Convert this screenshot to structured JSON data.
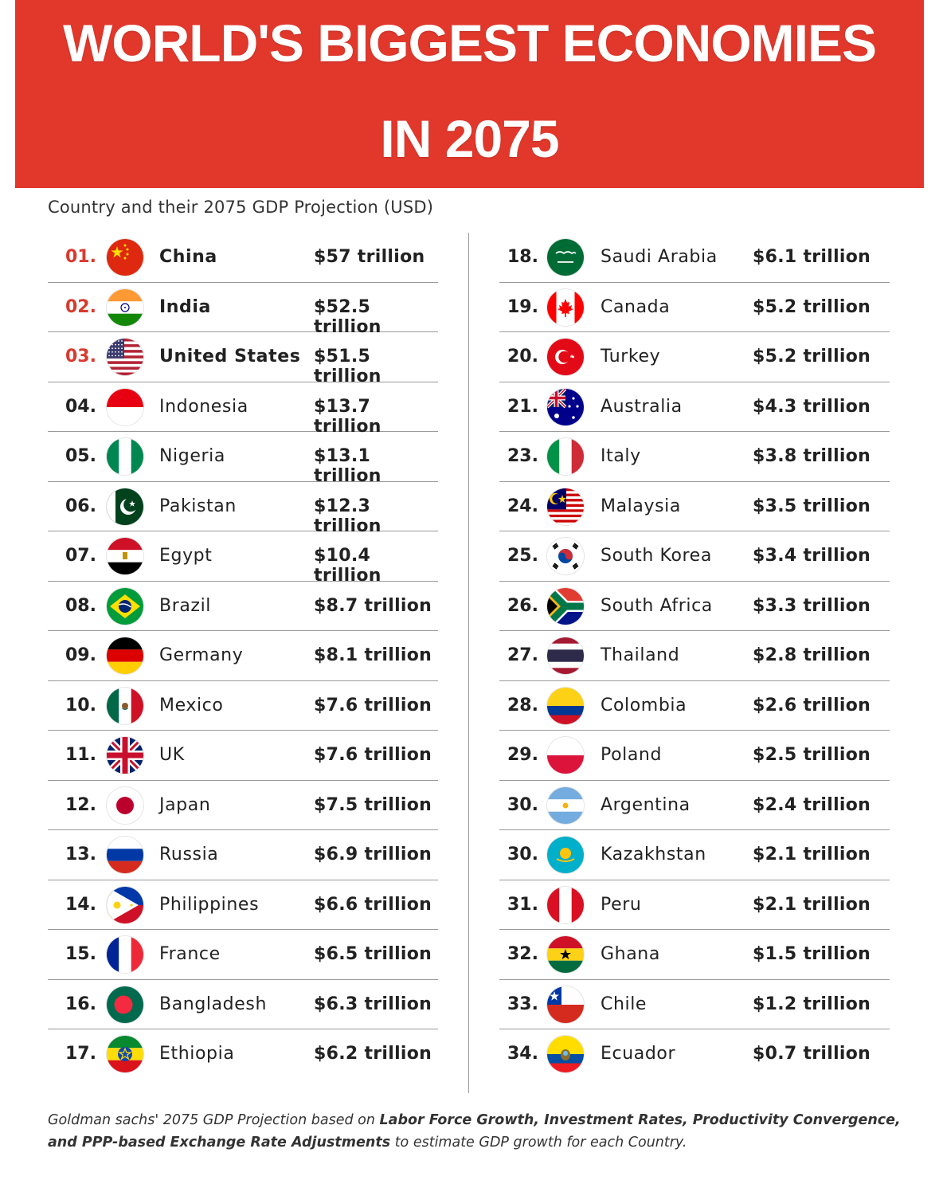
{
  "header": {
    "title_line1": "WORLD'S BIGGEST ECONOMIES",
    "title_line2": "IN 2075",
    "banner_color": "#e2382c"
  },
  "subtitle": "Country and their 2075 GDP Projection (USD)",
  "left_column": [
    {
      "rank": "01.",
      "country": "China",
      "gdp": "$57 trillion",
      "flag": "china-flag-icon"
    },
    {
      "rank": "02.",
      "country": "India",
      "gdp": "$52.5 trillion",
      "flag": "india-flag-icon"
    },
    {
      "rank": "03.",
      "country": "United States",
      "gdp": "$51.5 trillion",
      "flag": "usa-flag-icon"
    },
    {
      "rank": "04.",
      "country": "Indonesia",
      "gdp": "$13.7 trillion",
      "flag": "indonesia-flag-icon"
    },
    {
      "rank": "05.",
      "country": "Nigeria",
      "gdp": "$13.1 trillion",
      "flag": "nigeria-flag-icon"
    },
    {
      "rank": "06.",
      "country": "Pakistan",
      "gdp": "$12.3 trillion",
      "flag": "pakistan-flag-icon"
    },
    {
      "rank": "07.",
      "country": "Egypt",
      "gdp": "$10.4 trillion",
      "flag": "egypt-flag-icon"
    },
    {
      "rank": "08.",
      "country": "Brazil",
      "gdp": "$8.7 trillion",
      "flag": "brazil-flag-icon"
    },
    {
      "rank": "09.",
      "country": "Germany",
      "gdp": "$8.1 trillion",
      "flag": "germany-flag-icon"
    },
    {
      "rank": "10.",
      "country": "Mexico",
      "gdp": "$7.6 trillion",
      "flag": "mexico-flag-icon"
    },
    {
      "rank": "11.",
      "country": "UK",
      "gdp": "$7.6 trillion",
      "flag": "uk-flag-icon"
    },
    {
      "rank": "12.",
      "country": "Japan",
      "gdp": "$7.5 trillion",
      "flag": "japan-flag-icon"
    },
    {
      "rank": "13.",
      "country": "Russia",
      "gdp": "$6.9 trillion",
      "flag": "russia-flag-icon"
    },
    {
      "rank": "14.",
      "country": "Philippines",
      "gdp": "$6.6 trillion",
      "flag": "philippines-flag-icon"
    },
    {
      "rank": "15.",
      "country": "France",
      "gdp": "$6.5 trillion",
      "flag": "france-flag-icon"
    },
    {
      "rank": "16.",
      "country": "Bangladesh",
      "gdp": "$6.3 trillion",
      "flag": "bangladesh-flag-icon"
    },
    {
      "rank": "17.",
      "country": "Ethiopia",
      "gdp": "$6.2 trillion",
      "flag": "ethiopia-flag-icon"
    }
  ],
  "right_column": [
    {
      "rank": "18.",
      "country": "Saudi Arabia",
      "gdp": "$6.1 trillion",
      "flag": "saudi-arabia-flag-icon"
    },
    {
      "rank": "19.",
      "country": "Canada",
      "gdp": "$5.2 trillion",
      "flag": "canada-flag-icon"
    },
    {
      "rank": "20.",
      "country": "Turkey",
      "gdp": "$5.2 trillion",
      "flag": "turkey-flag-icon"
    },
    {
      "rank": "21.",
      "country": "Australia",
      "gdp": "$4.3 trillion",
      "flag": "australia-flag-icon"
    },
    {
      "rank": "23.",
      "country": "Italy",
      "gdp": "$3.8 trillion",
      "flag": "italy-flag-icon"
    },
    {
      "rank": "24.",
      "country": "Malaysia",
      "gdp": "$3.5 trillion",
      "flag": "malaysia-flag-icon"
    },
    {
      "rank": "25.",
      "country": "South Korea",
      "gdp": "$3.4 trillion",
      "flag": "south-korea-flag-icon"
    },
    {
      "rank": "26.",
      "country": "South Africa",
      "gdp": "$3.3 trillion",
      "flag": "south-africa-flag-icon"
    },
    {
      "rank": "27.",
      "country": "Thailand",
      "gdp": "$2.8 trillion",
      "flag": "thailand-flag-icon"
    },
    {
      "rank": "28.",
      "country": "Colombia",
      "gdp": "$2.6 trillion",
      "flag": "colombia-flag-icon"
    },
    {
      "rank": "29.",
      "country": "Poland",
      "gdp": "$2.5 trillion",
      "flag": "poland-flag-icon"
    },
    {
      "rank": "30.",
      "country": "Argentina",
      "gdp": "$2.4 trillion",
      "flag": "argentina-flag-icon"
    },
    {
      "rank": "30.",
      "country": "Kazakhstan",
      "gdp": "$2.1 trillion",
      "flag": "kazakhstan-flag-icon"
    },
    {
      "rank": "31.",
      "country": "Peru",
      "gdp": "$2.1 trillion",
      "flag": "peru-flag-icon"
    },
    {
      "rank": "32.",
      "country": "Ghana",
      "gdp": "$1.5 trillion",
      "flag": "ghana-flag-icon"
    },
    {
      "rank": "33.",
      "country": "Chile",
      "gdp": "$1.2 trillion",
      "flag": "chile-flag-icon"
    },
    {
      "rank": "34.",
      "country": "Ecuador",
      "gdp": "$0.7 trillion",
      "flag": "ecuador-flag-icon"
    }
  ],
  "footnote": {
    "part1": "Goldman sachs' 2075 GDP Projection based on ",
    "bold1": "Labor Force Growth, Investment Rates, Productivity Convergence, and PPP-based Exchange Rate Adjustments",
    "part2": " to estimate GDP growth for each Country."
  },
  "colors": {
    "top_rank": "#d83a2e",
    "text": "#222222",
    "divider": "#9a9a9a"
  }
}
